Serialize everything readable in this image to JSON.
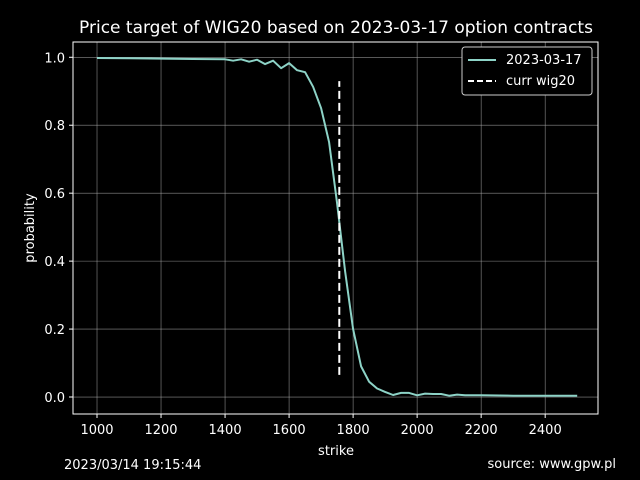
{
  "chart_data": {
    "type": "line",
    "title": "Price target of WIG20 based on 2023-03-17 option contracts",
    "xlabel": "strike",
    "ylabel": "probability",
    "xlim": [
      925,
      2565
    ],
    "ylim": [
      -0.05,
      1.045
    ],
    "xticks": [
      1000,
      1200,
      1400,
      1600,
      1800,
      2000,
      2200,
      2400
    ],
    "xtick_labels": [
      "1000",
      "1200",
      "1400",
      "1600",
      "1800",
      "2000",
      "2200",
      "2400"
    ],
    "yticks": [
      0.0,
      0.2,
      0.4,
      0.6,
      0.8,
      1.0
    ],
    "ytick_labels": [
      "0.0",
      "0.2",
      "0.4",
      "0.6",
      "0.8",
      "1.0"
    ],
    "grid": true,
    "legend_position": "top-right",
    "series": [
      {
        "name": "2023-03-17",
        "color": "#8dd3c7",
        "x": [
          1000,
          1100,
          1200,
          1300,
          1400,
          1425,
          1450,
          1475,
          1500,
          1525,
          1550,
          1575,
          1600,
          1625,
          1650,
          1675,
          1700,
          1725,
          1750,
          1775,
          1800,
          1825,
          1850,
          1875,
          1900,
          1925,
          1950,
          1975,
          2000,
          2025,
          2050,
          2075,
          2100,
          2125,
          2150,
          2200,
          2300,
          2400,
          2500
        ],
        "values": [
          0.998,
          0.997,
          0.996,
          0.995,
          0.994,
          0.99,
          0.994,
          0.987,
          0.993,
          0.98,
          0.99,
          0.968,
          0.983,
          0.962,
          0.956,
          0.913,
          0.85,
          0.75,
          0.57,
          0.37,
          0.2,
          0.09,
          0.045,
          0.025,
          0.015,
          0.006,
          0.012,
          0.012,
          0.005,
          0.01,
          0.009,
          0.009,
          0.004,
          0.007,
          0.005,
          0.005,
          0.004,
          0.004,
          0.004
        ]
      },
      {
        "name": "curr wig20",
        "color": "#ffffff",
        "style": "dashed",
        "x": [
          1757,
          1757
        ],
        "values": [
          0.065,
          0.93
        ]
      }
    ]
  },
  "footer": {
    "timestamp": "2023/03/14 19:15:44",
    "source": "source: www.gpw.pl"
  }
}
